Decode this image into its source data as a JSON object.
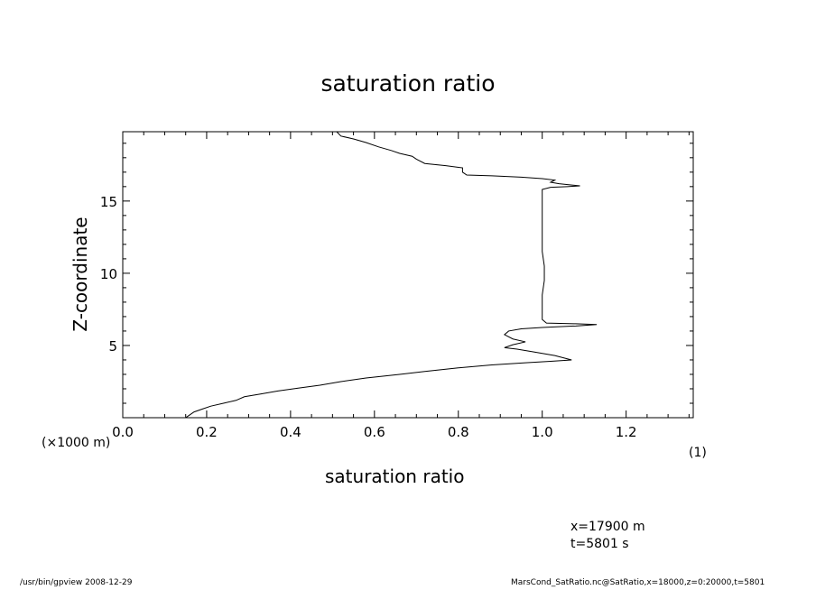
{
  "chart_data": {
    "type": "line",
    "title": "saturation ratio",
    "xlabel": "saturation ratio",
    "ylabel": "Z-coordinate",
    "y_unit_label": "(×1000 m)",
    "x_unit_label": "(1)",
    "xlim": [
      0.0,
      1.36
    ],
    "ylim": [
      0.0,
      19.8
    ],
    "x_ticks": [
      "0.0",
      "0.2",
      "0.4",
      "0.6",
      "0.8",
      "1.0",
      "1.2"
    ],
    "y_ticks": [
      "5",
      "10",
      "15"
    ],
    "grid": false,
    "series": [
      {
        "color": "#000000",
        "points": [
          [
            0.15,
            0.0
          ],
          [
            0.16,
            0.2
          ],
          [
            0.17,
            0.4
          ],
          [
            0.19,
            0.6
          ],
          [
            0.21,
            0.8
          ],
          [
            0.24,
            1.0
          ],
          [
            0.27,
            1.2
          ],
          [
            0.29,
            1.45
          ],
          [
            0.33,
            1.65
          ],
          [
            0.37,
            1.85
          ],
          [
            0.42,
            2.05
          ],
          [
            0.47,
            2.25
          ],
          [
            0.52,
            2.5
          ],
          [
            0.58,
            2.75
          ],
          [
            0.66,
            3.0
          ],
          [
            0.72,
            3.2
          ],
          [
            0.8,
            3.45
          ],
          [
            0.88,
            3.65
          ],
          [
            0.96,
            3.8
          ],
          [
            1.02,
            3.9
          ],
          [
            1.07,
            4.0
          ],
          [
            1.03,
            4.3
          ],
          [
            0.98,
            4.55
          ],
          [
            0.94,
            4.75
          ],
          [
            0.91,
            4.85
          ],
          [
            0.93,
            5.05
          ],
          [
            0.96,
            5.25
          ],
          [
            0.93,
            5.45
          ],
          [
            0.91,
            5.75
          ],
          [
            0.92,
            6.0
          ],
          [
            0.95,
            6.15
          ],
          [
            1.0,
            6.25
          ],
          [
            1.08,
            6.35
          ],
          [
            1.13,
            6.45
          ],
          [
            1.08,
            6.5
          ],
          [
            1.01,
            6.55
          ],
          [
            1.0,
            6.8
          ],
          [
            1.0,
            7.5
          ],
          [
            1.0,
            8.5
          ],
          [
            1.005,
            9.5
          ],
          [
            1.005,
            10.5
          ],
          [
            1.0,
            11.5
          ],
          [
            1.0,
            12.5
          ],
          [
            1.0,
            13.5
          ],
          [
            1.0,
            14.5
          ],
          [
            1.0,
            15.5
          ],
          [
            1.0,
            15.8
          ],
          [
            1.02,
            15.95
          ],
          [
            1.06,
            16.0
          ],
          [
            1.09,
            16.05
          ],
          [
            1.04,
            16.2
          ],
          [
            1.02,
            16.3
          ],
          [
            1.03,
            16.45
          ],
          [
            1.0,
            16.55
          ],
          [
            0.95,
            16.65
          ],
          [
            0.88,
            16.75
          ],
          [
            0.82,
            16.8
          ],
          [
            0.81,
            17.0
          ],
          [
            0.81,
            17.3
          ],
          [
            0.77,
            17.45
          ],
          [
            0.72,
            17.6
          ],
          [
            0.7,
            17.9
          ],
          [
            0.69,
            18.1
          ],
          [
            0.66,
            18.3
          ],
          [
            0.64,
            18.5
          ],
          [
            0.61,
            18.75
          ],
          [
            0.58,
            19.05
          ],
          [
            0.55,
            19.3
          ],
          [
            0.52,
            19.5
          ],
          [
            0.51,
            19.8
          ]
        ]
      }
    ]
  },
  "annotations": {
    "x_position": "x=17900 m",
    "time": "t=5801 s"
  },
  "footer": {
    "left": "/usr/bin/gpview   2008-12-29",
    "right": "MarsCond_SatRatio.nc@SatRatio,x=18000,z=0:20000,t=5801"
  }
}
